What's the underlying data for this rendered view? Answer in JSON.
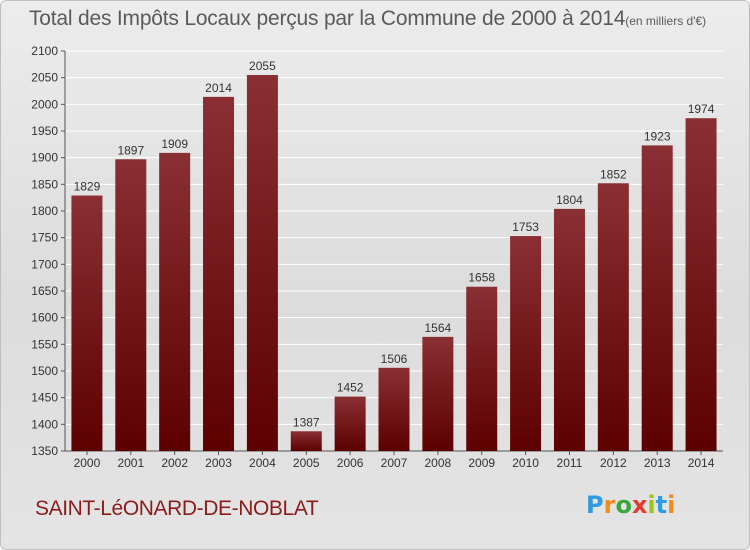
{
  "header": {
    "title": "Total des Impôts Locaux perçus par la Commune de 2000 à 2014",
    "unit": "(en milliers d'€)"
  },
  "footer": {
    "commune": "SAINT-LéONARD-DE-NOBLAT",
    "brand": "Proxiti"
  },
  "colors": {
    "bar_top": "#8a2f33",
    "bar_bottom": "#5c0000",
    "commune_text": "#8b1c1c",
    "title_text": "#5a5a5a",
    "brand_letters": [
      "#2f9be0",
      "#f08c1a",
      "#3aa63a",
      "#e23b2e",
      "#9fc31a",
      "#2f9be0",
      "#f08c1a"
    ]
  },
  "chart_data": {
    "type": "bar",
    "title": "Total des Impôts Locaux perçus par la Commune de 2000 à 2014",
    "xlabel": "",
    "ylabel": "",
    "categories": [
      "2000",
      "2001",
      "2002",
      "2003",
      "2004",
      "2005",
      "2006",
      "2007",
      "2008",
      "2009",
      "2010",
      "2011",
      "2012",
      "2013",
      "2014"
    ],
    "values": [
      1829,
      1897,
      1909,
      2014,
      2055,
      1387,
      1452,
      1506,
      1564,
      1658,
      1753,
      1804,
      1852,
      1923,
      1974
    ],
    "ylim": [
      1350,
      2100
    ],
    "yticks": [
      1350,
      1400,
      1450,
      1500,
      1550,
      1600,
      1650,
      1700,
      1750,
      1800,
      1850,
      1900,
      1950,
      2000,
      2050,
      2100
    ],
    "grid": true
  }
}
